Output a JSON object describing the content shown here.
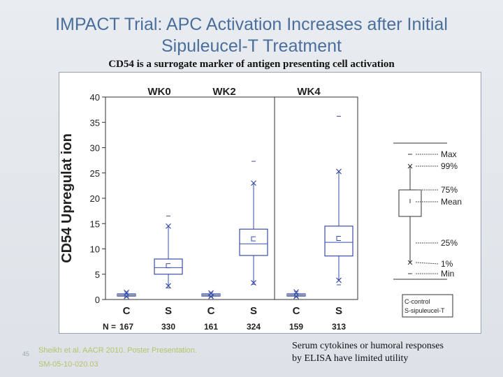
{
  "slide": {
    "title_line1": "IMPACT Trial: APC Activation Increases after Initial",
    "title_line2": "Sipuleucel-T Treatment",
    "subtitle": "CD54 is a surrogate marker of antigen presenting cell activation",
    "slide_number": "45",
    "citation_line1": "Sheikh et al. AACR 2010. Poster Presentation.",
    "citation_line2": "SM-05-10-020.03",
    "note_line1": "Serum cytokines or humoral responses",
    "note_line2": "by ELISA have limited utility"
  },
  "chart_data": {
    "type": "box",
    "ylabel": "CD54 Upregulat ion",
    "ylim": [
      0,
      40
    ],
    "yticks": [
      0,
      5,
      10,
      15,
      20,
      25,
      30,
      35,
      40
    ],
    "groups": [
      "WK0",
      "WK2",
      "WK4"
    ],
    "n_prefix": "N =",
    "boxes": [
      {
        "group": "WK0",
        "label": "C",
        "n": "167",
        "min": 0.5,
        "p1": 0.6,
        "q1": 0.7,
        "median": 0.9,
        "mean": 1.0,
        "q3": 1.1,
        "p99": 1.4,
        "max": 1.5
      },
      {
        "group": "WK0",
        "label": "S",
        "n": "330",
        "min": 2.3,
        "p1": 2.7,
        "q1": 5.0,
        "median": 6.3,
        "mean": 6.4,
        "q3": 8.0,
        "p99": 14.5,
        "max": 16.5
      },
      {
        "group": "WK2",
        "label": "C",
        "n": "161",
        "min": 0.5,
        "p1": 0.6,
        "q1": 0.7,
        "median": 0.9,
        "mean": 1.0,
        "q3": 1.1,
        "p99": 1.3,
        "max": 1.4
      },
      {
        "group": "WK2",
        "label": "S",
        "n": "324",
        "min": 3.0,
        "p1": 3.3,
        "q1": 8.7,
        "median": 11.0,
        "mean": 11.7,
        "q3": 13.9,
        "p99": 23.0,
        "max": 27.3
      },
      {
        "group": "WK4",
        "label": "C",
        "n": "159",
        "min": 0.5,
        "p1": 0.6,
        "q1": 0.7,
        "median": 0.9,
        "mean": 1.1,
        "q3": 1.1,
        "p99": 1.5,
        "max": 1.6
      },
      {
        "group": "WK4",
        "label": "S",
        "n": "313",
        "min": 2.9,
        "p1": 3.8,
        "q1": 8.6,
        "median": 11.3,
        "mean": 11.8,
        "q3": 14.5,
        "p99": 25.3,
        "max": 36.2
      }
    ],
    "legend": {
      "items": [
        "Max",
        "99%",
        "75%",
        "Mean",
        "25%",
        "1%",
        "Min"
      ],
      "key_line1": "C-control",
      "key_line2": "S-sipuleucel-T"
    },
    "colors": {
      "box": "#3a4ea8",
      "text": "#222222"
    }
  }
}
